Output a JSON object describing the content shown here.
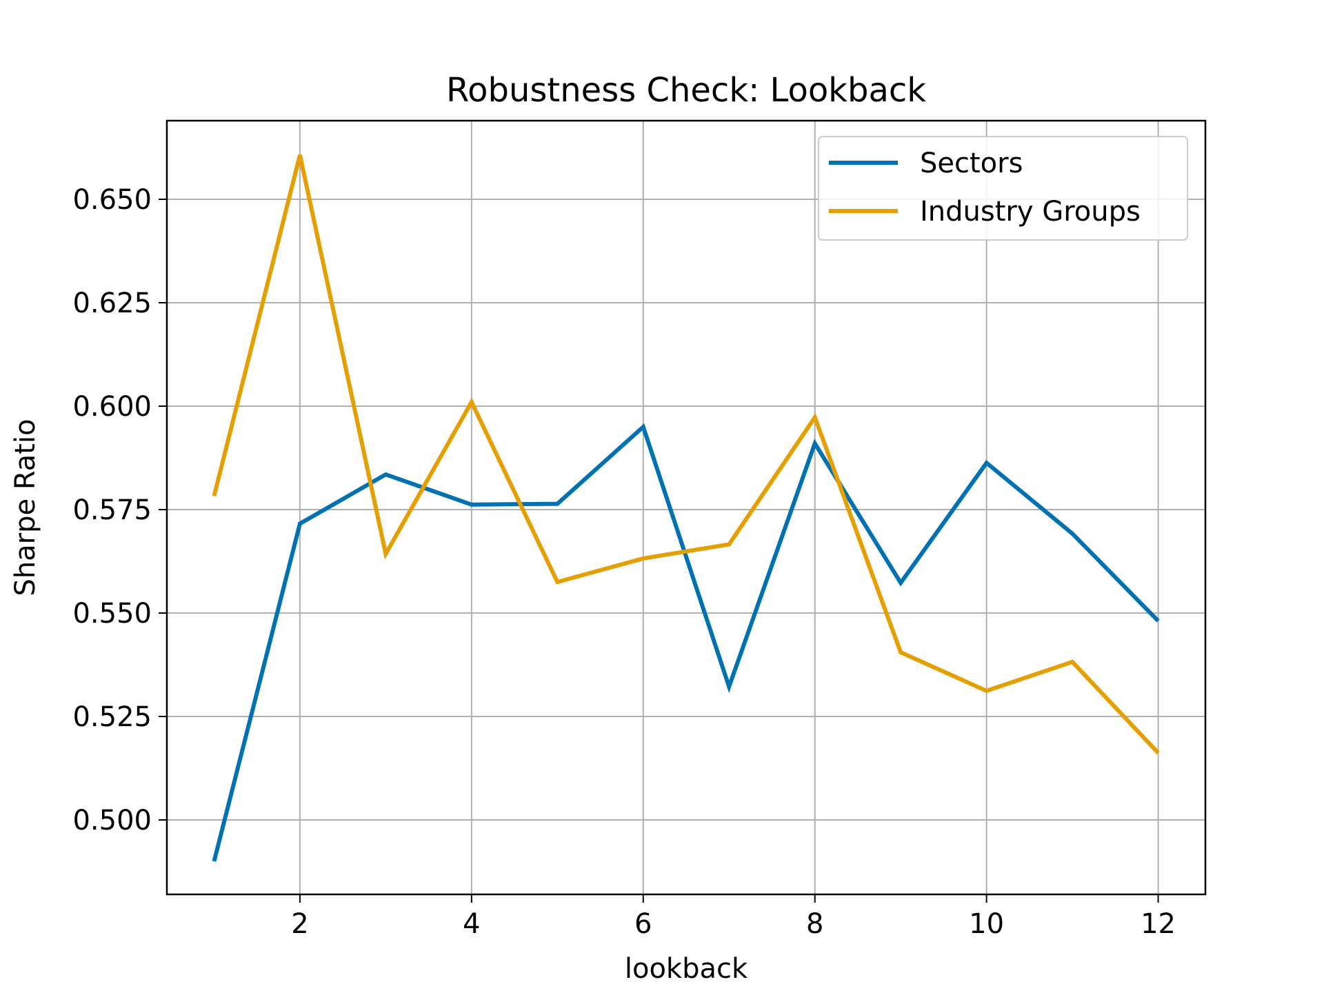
{
  "chart_data": {
    "type": "line",
    "title": "Robustness Check: Lookback",
    "xlabel": "lookback",
    "ylabel": "Sharpe Ratio",
    "x": [
      1,
      2,
      3,
      4,
      5,
      6,
      7,
      8,
      9,
      10,
      11,
      12
    ],
    "xlim": [
      0.45,
      12.55
    ],
    "ylim": [
      0.482,
      0.669
    ],
    "xticks": [
      2,
      4,
      6,
      8,
      10,
      12
    ],
    "xtick_labels": [
      "2",
      "4",
      "6",
      "8",
      "10",
      "12"
    ],
    "yticks": [
      0.5,
      0.525,
      0.55,
      0.575,
      0.6,
      0.625,
      0.65
    ],
    "ytick_labels": [
      "0.500",
      "0.525",
      "0.550",
      "0.575",
      "0.600",
      "0.625",
      "0.650"
    ],
    "grid": true,
    "legend_position": "top-right",
    "series": [
      {
        "name": "Sectors",
        "color": "#0072B2",
        "values": [
          0.49,
          0.5716,
          0.5835,
          0.5762,
          0.5764,
          0.595,
          0.5322,
          0.591,
          0.5573,
          0.5863,
          0.5692,
          0.5481
        ]
      },
      {
        "name": "Industry Groups",
        "color": "#E69F00",
        "values": [
          0.5783,
          0.6607,
          0.5643,
          0.601,
          0.5575,
          0.5632,
          0.5666,
          0.5973,
          0.5405,
          0.5312,
          0.5382,
          0.5162
        ]
      }
    ]
  }
}
